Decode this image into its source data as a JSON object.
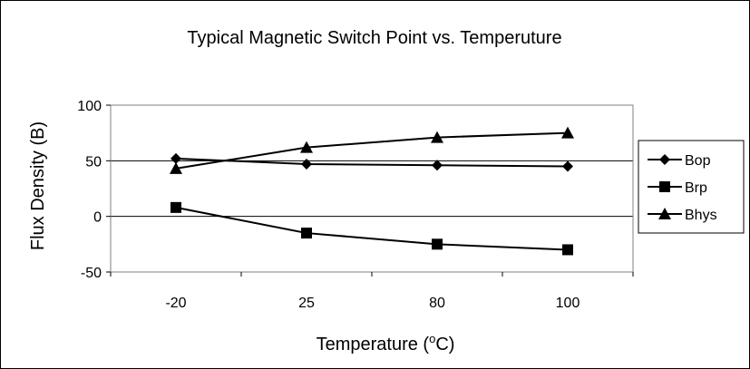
{
  "chart_data": {
    "type": "line",
    "title": "Typical Magnetic Switch Point vs. Temperuture",
    "xlabel": "Temperature (",
    "xlabel_sup": "o",
    "xlabel_end": "C)",
    "ylabel": "Flux Density (B)",
    "categories": [
      "-20",
      "25",
      "80",
      "100"
    ],
    "ylim": [
      -50,
      100
    ],
    "yticks": [
      -50,
      0,
      50,
      100
    ],
    "gridlines": [
      0,
      50
    ],
    "legend_position": "right",
    "series": [
      {
        "name": "Bop",
        "marker": "diamond",
        "values": [
          52,
          47,
          46,
          45
        ]
      },
      {
        "name": "Brp",
        "marker": "square",
        "values": [
          8,
          -15,
          -25,
          -30
        ]
      },
      {
        "name": "Bhys",
        "marker": "triangle",
        "values": [
          43,
          62,
          71,
          75
        ]
      }
    ]
  }
}
